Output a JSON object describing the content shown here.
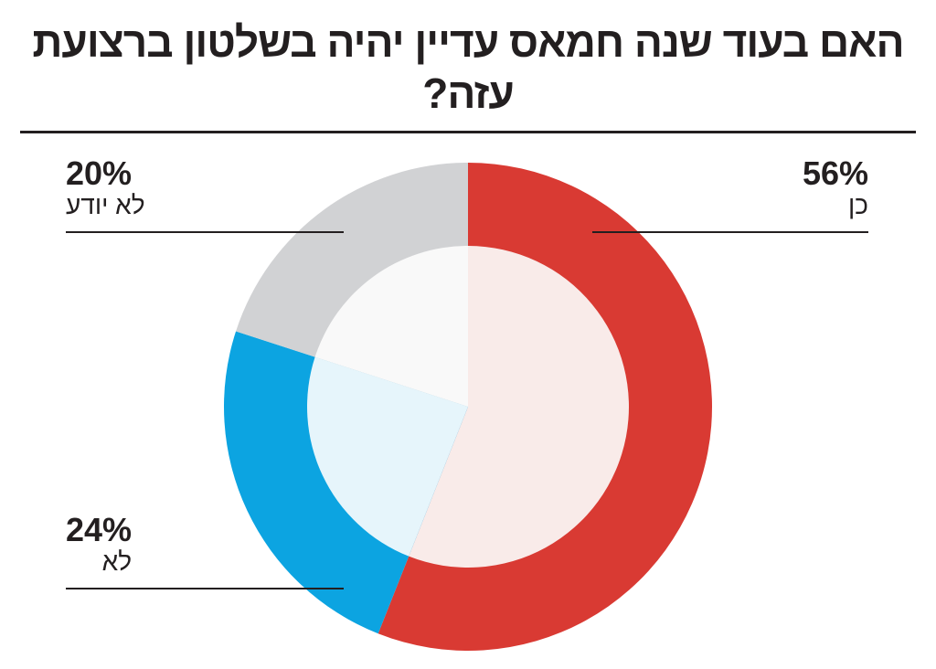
{
  "chart_data": {
    "type": "pie",
    "style": "donut",
    "title": "האם בעוד שנה חמאס עדיין יהיה בשלטון ברצועת עזה?",
    "slices": [
      {
        "name": "כן",
        "value": 56,
        "label": "56%",
        "color": "#d93a33",
        "inner_color": "#f9ebe9"
      },
      {
        "name": "לא",
        "value": 24,
        "label": "24%",
        "color": "#0ca4e1",
        "inner_color": "#e6f5fb"
      },
      {
        "name": "לא יודע",
        "value": 20,
        "label": "20%",
        "color": "#d1d2d4",
        "inner_color": "#f9f9f9"
      }
    ],
    "start": "top",
    "direction": "clockwise"
  }
}
